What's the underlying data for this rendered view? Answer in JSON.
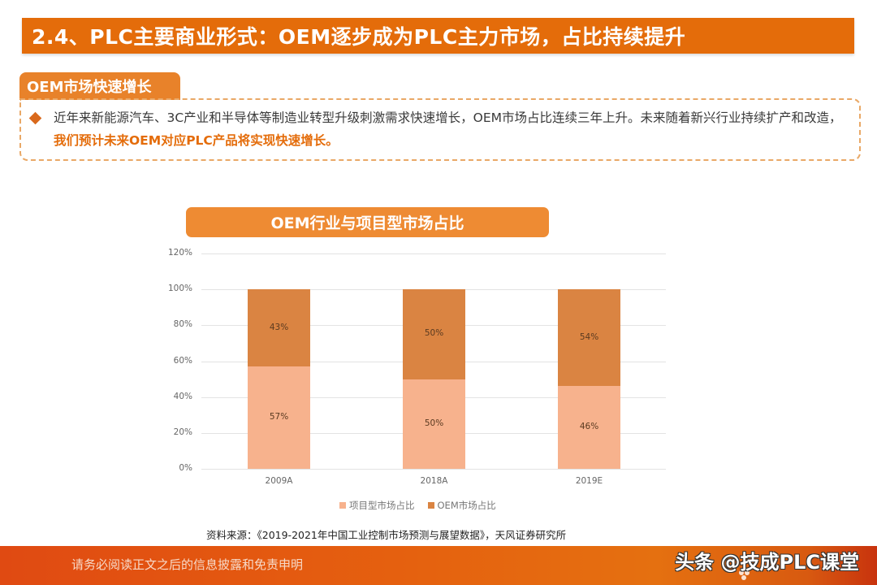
{
  "header": {
    "title": "2.4、PLC主要商业形式：OEM逐步成为PLC主力市场，占比持续提升"
  },
  "section": {
    "tag": "OEM市场快速增长",
    "bullet_icon": "diamond-bullet",
    "paragraph_normal": "近年来新能源汽车、3C产业和半导体等制造业转型升级刺激需求快速增长，OEM市场占比连续三年上升。未来随着新兴行业持续扩产和改造，",
    "paragraph_highlight": "我们预计未来OEM对应PLC产品将实现快速增长。"
  },
  "chart_title": "OEM行业与项目型市场占比",
  "chart_data": {
    "type": "bar",
    "stacked": true,
    "title": "OEM行业与项目型市场占比",
    "categories": [
      "2009A",
      "2018A",
      "2019E"
    ],
    "series": [
      {
        "name": "项目型市场占比",
        "values": [
          57,
          50,
          46
        ],
        "labels": [
          "57%",
          "50%",
          "46%"
        ],
        "color": "#F7B28D"
      },
      {
        "name": "OEM市场占比",
        "values": [
          43,
          50,
          54
        ],
        "labels": [
          "43%",
          "50%",
          "54%"
        ],
        "color": "#DA8442"
      }
    ],
    "xlabel": "",
    "ylabel": "",
    "ylim": [
      0,
      120
    ],
    "yticks": [
      "0%",
      "20%",
      "40%",
      "60%",
      "80%",
      "100%",
      "120%"
    ],
    "grid": true,
    "legend_position": "bottom"
  },
  "legend": [
    {
      "label": "项目型市场占比",
      "color": "#F7B28D"
    },
    {
      "label": "OEM市场占比",
      "color": "#DA8442"
    }
  ],
  "source": "资料来源：《2019-2021年中国工业控制市场预测与展望数据》，天风证券研究所",
  "footer": {
    "disclaimer": "请务必阅读正文之后的信息披露和免责申明",
    "watermark": "头条 @技成PLC课堂"
  },
  "colors": {
    "accent": "#E46C0A",
    "tag": "#E8822A",
    "chart_title_bg": "#EE8B33",
    "dash_border": "#E9A866"
  }
}
